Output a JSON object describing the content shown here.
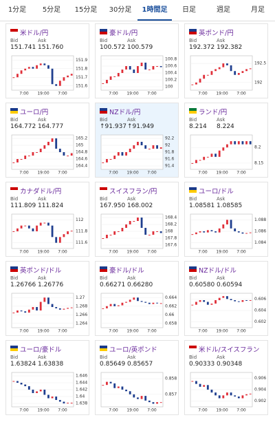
{
  "tabs": [
    "1分足",
    "5分足",
    "15分足",
    "30分足",
    "1時間足",
    "日足",
    "週足",
    "月足"
  ],
  "active_tab": 4,
  "bid_label": "Bid",
  "ask_label": "Ask",
  "x_axis_labels": [
    "7:00",
    "19:00",
    "7:00"
  ],
  "cards": [
    {
      "name": "米ドル/円",
      "bid": "151.741",
      "ask": "151.760",
      "ylim": [
        151.55,
        151.95
      ],
      "yticks": [
        151.9,
        151.8,
        151.7,
        151.6
      ],
      "closes": [
        151.7,
        151.74,
        151.78,
        151.8,
        151.82,
        151.8,
        151.84,
        151.86,
        151.84,
        151.8,
        151.62,
        151.6,
        151.66,
        151.7,
        151.72,
        151.74
      ]
    },
    {
      "name": "豪ドル/円",
      "bid": "100.572",
      "ask": "100.579",
      "ylim": [
        99.9,
        100.9
      ],
      "yticks": [
        100.8,
        100.6,
        100.4,
        100.2,
        100
      ],
      "closes": [
        100.1,
        100.2,
        100.3,
        100.3,
        100.4,
        100.5,
        100.6,
        100.5,
        100.4,
        100.6,
        100.7,
        100.5,
        100.5,
        100.6,
        100.6,
        100.57
      ]
    },
    {
      "name": "英ポンド/円",
      "bid": "192.372",
      "ask": "192.382",
      "ylim": [
        191.8,
        192.7
      ],
      "yticks": [
        192.5,
        192
      ],
      "closes": [
        191.95,
        192.0,
        192.1,
        192.2,
        192.2,
        192.3,
        192.35,
        192.4,
        192.5,
        192.45,
        192.3,
        192.2,
        192.25,
        192.3,
        192.35,
        192.37
      ]
    },
    {
      "name": "ユーロ/円",
      "bid": "164.772",
      "ask": "164.777",
      "ylim": [
        164.3,
        165.3
      ],
      "yticks": [
        165.2,
        165,
        164.8,
        164.6,
        164.4
      ],
      "closes": [
        164.5,
        164.6,
        164.6,
        164.7,
        164.7,
        164.8,
        164.8,
        164.9,
        165.0,
        165.1,
        165.2,
        164.9,
        164.8,
        164.7,
        164.7,
        164.77
      ]
    },
    {
      "name": "NZドル/円",
      "bid": "↑91.937",
      "ask": "↑91.949",
      "highlight": true,
      "ylim": [
        91.3,
        92.3
      ],
      "yticks": [
        92.2,
        92,
        91.8,
        91.6,
        91.4
      ],
      "closes": [
        91.5,
        91.6,
        91.6,
        91.7,
        91.8,
        91.7,
        91.8,
        91.9,
        92.0,
        92.1,
        92.0,
        91.9,
        91.9,
        92.0,
        91.9,
        91.94
      ]
    },
    {
      "name": "ランド/円",
      "bid": "8.214",
      "ask": "8.224",
      "ylim": [
        8.13,
        8.24
      ],
      "yticks": [
        8.2,
        8.15
      ],
      "closes": [
        8.15,
        8.16,
        8.16,
        8.17,
        8.17,
        8.18,
        8.17,
        8.19,
        8.2,
        8.21,
        8.22,
        8.21,
        8.22,
        8.21,
        8.22,
        8.21
      ]
    },
    {
      "name": "カナダドル/円",
      "bid": "111.809",
      "ask": "111.824",
      "ylim": [
        111.5,
        112.1
      ],
      "yticks": [
        112,
        111.8,
        111.6
      ],
      "closes": [
        111.8,
        111.85,
        111.9,
        111.9,
        111.85,
        111.8,
        111.9,
        111.95,
        111.95,
        111.9,
        111.7,
        111.6,
        111.7,
        111.75,
        111.8,
        111.81
      ]
    },
    {
      "name": "スイスフラン/円",
      "bid": "167.950",
      "ask": "168.002",
      "ylim": [
        167.5,
        168.5
      ],
      "yticks": [
        168.4,
        168.2,
        168,
        167.8,
        167.6
      ],
      "closes": [
        167.8,
        167.9,
        167.9,
        168.0,
        168.0,
        168.1,
        168.2,
        168.3,
        168.3,
        168.4,
        168.1,
        167.9,
        167.9,
        168.0,
        168.0,
        167.95
      ]
    },
    {
      "name": "ユーロ/ドル",
      "bid": "1.08581",
      "ask": "1.08585",
      "ylim": [
        1.083,
        1.089
      ],
      "yticks": [
        1.088,
        1.086,
        1.084
      ],
      "closes": [
        1.0855,
        1.0858,
        1.086,
        1.0858,
        1.0862,
        1.086,
        1.0858,
        1.0865,
        1.0872,
        1.088,
        1.0865,
        1.086,
        1.0858,
        1.0856,
        1.0857,
        1.0858
      ]
    },
    {
      "name": "英ポンド/ドル",
      "bid": "1.26766",
      "ask": "1.26776",
      "ylim": [
        1.263,
        1.271
      ],
      "yticks": [
        1.27,
        1.268,
        1.266,
        1.264
      ],
      "closes": [
        1.2665,
        1.267,
        1.2668,
        1.2665,
        1.2672,
        1.2678,
        1.267,
        1.269,
        1.27,
        1.2685,
        1.2678,
        1.2675,
        1.2672,
        1.2674,
        1.2676,
        1.2677
      ]
    },
    {
      "name": "豪ドル/ドル",
      "bid": "0.66271",
      "ask": "0.66280",
      "ylim": [
        0.657,
        0.665
      ],
      "yticks": [
        0.664,
        0.662,
        0.66,
        0.658
      ],
      "closes": [
        0.6615,
        0.662,
        0.6625,
        0.662,
        0.6622,
        0.6628,
        0.663,
        0.6635,
        0.664,
        0.6632,
        0.663,
        0.6628,
        0.6625,
        0.6628,
        0.6627,
        0.6627
      ]
    },
    {
      "name": "NZドル/ドル",
      "bid": "0.60580",
      "ask": "0.60594",
      "ylim": [
        0.601,
        0.607
      ],
      "yticks": [
        0.606,
        0.604,
        0.602
      ],
      "closes": [
        0.605,
        0.6055,
        0.6058,
        0.6055,
        0.605,
        0.6052,
        0.6058,
        0.6062,
        0.6065,
        0.606,
        0.6058,
        0.6056,
        0.6055,
        0.6058,
        0.6057,
        0.6058
      ]
    },
    {
      "name": "ユーロ/豪ドル",
      "bid": "1.63824",
      "ask": "1.63838",
      "ylim": [
        1.637,
        1.647
      ],
      "yticks": [
        1.646,
        1.644,
        1.642,
        1.64,
        1.638
      ],
      "closes": [
        1.6445,
        1.644,
        1.6435,
        1.643,
        1.642,
        1.641,
        1.6415,
        1.642,
        1.6405,
        1.6395,
        1.64,
        1.639,
        1.6385,
        1.638,
        1.6382,
        1.6382
      ]
    },
    {
      "name": "ユーロ/英ポンド",
      "bid": "0.85649",
      "ask": "0.85657",
      "ylim": [
        0.8562,
        0.8584
      ],
      "yticks": [
        0.858,
        0.857
      ],
      "closes": [
        0.8576,
        0.8578,
        0.8577,
        0.8574,
        0.8575,
        0.8573,
        0.8572,
        0.857,
        0.8568,
        0.8567,
        0.8569,
        0.8566,
        0.8565,
        0.8564,
        0.8565,
        0.8565
      ]
    },
    {
      "name": "米ドル/スイスフラン",
      "bid": "0.90333",
      "ask": "0.90348",
      "ylim": [
        0.901,
        0.907
      ],
      "yticks": [
        0.906,
        0.904,
        0.902
      ],
      "closes": [
        0.9055,
        0.905,
        0.9045,
        0.9048,
        0.904,
        0.9035,
        0.903,
        0.9025,
        0.903,
        0.9035,
        0.903,
        0.9028,
        0.9025,
        0.903,
        0.9032,
        0.9033
      ]
    }
  ]
}
